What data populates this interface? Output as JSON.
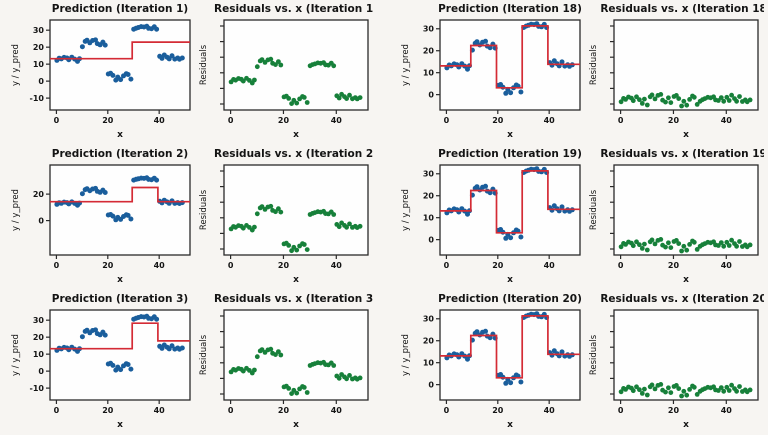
{
  "page": {
    "background": "#f7f5f2"
  },
  "chart_data": {
    "type": "scatter",
    "layout": {
      "grid": "3 rows x 4 columns, two figure groups (iterations 1-3 left, 18-20 right)",
      "legend": "none",
      "grid_lines": false
    },
    "colors": {
      "scatter_blue": "#1a5e9c",
      "line_red": "#d42b35",
      "residual_green": "#17803a",
      "axis": "#2a2a2a",
      "plot_bg": "#fefefe",
      "text": "#141414"
    },
    "dataset": {
      "x": [
        0.2,
        1.1,
        1.9,
        3.0,
        4.1,
        4.8,
        6.0,
        7.1,
        8.2,
        9.0,
        10.1,
        11.2,
        11.9,
        13.0,
        14.1,
        15.2,
        15.9,
        17.0,
        18.1,
        19.0,
        20.2,
        21.1,
        22.0,
        23.1,
        23.9,
        25.0,
        26.1,
        27.2,
        27.9,
        29.0,
        30.1,
        31.0,
        31.9,
        33.0,
        34.1,
        35.2,
        35.9,
        37.0,
        38.1,
        39.0,
        40.2,
        41.1,
        42.0,
        43.1,
        43.9,
        45.0,
        46.1,
        47.2,
        47.9,
        49.0
      ],
      "y": [
        12.2,
        13.5,
        13.1,
        14.0,
        13.6,
        12.6,
        14.1,
        13.0,
        11.6,
        13.2,
        20.3,
        23.4,
        24.1,
        22.6,
        23.9,
        24.3,
        22.1,
        21.4,
        23.0,
        21.2,
        4.2,
        4.6,
        3.4,
        0.6,
        2.4,
        0.9,
        3.1,
        4.4,
        3.9,
        1.2,
        30.6,
        31.2,
        31.6,
        32.1,
        31.9,
        32.3,
        31.1,
        30.9,
        32.0,
        30.6,
        14.6,
        13.4,
        15.4,
        14.1,
        13.1,
        14.9,
        13.0,
        13.6,
        12.9,
        13.6
      ]
    },
    "figures": [
      {
        "name": "left",
        "plots": [
          {
            "id": "prediction-1",
            "kind": "prediction",
            "title": "Prediction (Iteration 1)",
            "xlabel": "x",
            "ylabel": "y / y_pred",
            "xlim": [
              -2.5,
              52
            ],
            "ylim": [
              -17,
              36
            ],
            "xticks": [
              0,
              20,
              40
            ],
            "yticks": [
              30,
              20,
              10,
              0,
              -10
            ],
            "line_segments": [
              [
                -2.5,
                29.5,
                13.2
              ],
              [
                29.5,
                52,
                23.0
              ]
            ]
          },
          {
            "id": "residuals-1",
            "kind": "residuals",
            "title": "Residuals vs. x (Iteration 1)",
            "xlabel": "x",
            "ylabel": "Residuals",
            "xlim": [
              -2.5,
              52
            ],
            "ylim": [
              -16,
              32
            ],
            "xticks": [
              0,
              20,
              40
            ],
            "ytick_count": 6,
            "line_segments": [
              [
                -2.5,
                29.5,
                13.2
              ],
              [
                29.5,
                52,
                23.0
              ]
            ]
          },
          {
            "id": "prediction-2",
            "kind": "prediction",
            "title": "Prediction (Iteration 2)",
            "xlabel": "x",
            "ylabel": "y / y_pred",
            "xlim": [
              -2.5,
              52
            ],
            "ylim": [
              -26,
              42
            ],
            "xticks": [
              0,
              20,
              40
            ],
            "yticks": [
              20,
              0
            ],
            "line_segments": [
              [
                -2.5,
                29.5,
                14.3
              ],
              [
                29.5,
                39.5,
                25.0
              ],
              [
                39.5,
                52,
                14.3
              ]
            ]
          },
          {
            "id": "residuals-2",
            "kind": "residuals",
            "title": "Residuals vs. x (Iteration 2)",
            "xlabel": "x",
            "ylabel": "Residuals",
            "xlim": [
              -2.5,
              52
            ],
            "ylim": [
              -16,
              32
            ],
            "xticks": [
              0,
              20,
              40
            ],
            "ytick_count": 6,
            "line_segments": [
              [
                -2.5,
                29.5,
                14.3
              ],
              [
                29.5,
                39.5,
                25.0
              ],
              [
                39.5,
                52,
                14.3
              ]
            ]
          },
          {
            "id": "prediction-3",
            "kind": "prediction",
            "title": "Prediction (Iteration 3)",
            "xlabel": "x",
            "ylabel": "y / y_pred",
            "xlim": [
              -2.5,
              52
            ],
            "ylim": [
              -17,
              36
            ],
            "xticks": [
              0,
              20,
              40
            ],
            "yticks": [
              30,
              20,
              10,
              0,
              -10
            ],
            "line_segments": [
              [
                -2.5,
                29.5,
                13.2
              ],
              [
                29.5,
                39.5,
                28.2
              ],
              [
                39.5,
                52,
                17.8
              ]
            ]
          },
          {
            "id": "residuals-3",
            "kind": "residuals",
            "title": "Residuals vs. x (Iteration 3)",
            "xlabel": "x",
            "ylabel": "Residuals",
            "xlim": [
              -2.5,
              52
            ],
            "ylim": [
              -16,
              32
            ],
            "xticks": [
              0,
              20,
              40
            ],
            "ytick_count": 6,
            "line_segments": [
              [
                -2.5,
                29.5,
                13.2
              ],
              [
                29.5,
                39.5,
                28.2
              ],
              [
                39.5,
                52,
                17.8
              ]
            ]
          }
        ]
      },
      {
        "name": "right",
        "plots": [
          {
            "id": "prediction-18",
            "kind": "prediction",
            "title": "Prediction (Iteration 18)",
            "xlabel": "x",
            "ylabel": "y / y_pred",
            "xlim": [
              -2.5,
              52
            ],
            "ylim": [
              -7,
              34
            ],
            "xticks": [
              0,
              20,
              40
            ],
            "yticks": [
              30,
              20,
              10,
              0
            ],
            "line_segments": [
              [
                -2.5,
                9.5,
                13.1
              ],
              [
                9.5,
                19.5,
                22.4
              ],
              [
                19.5,
                29.5,
                3.1
              ],
              [
                29.5,
                39.5,
                31.3
              ],
              [
                39.5,
                52,
                13.8
              ]
            ]
          },
          {
            "id": "residuals-18",
            "kind": "residuals",
            "title": "Residuals vs. x (Iteration 18)",
            "xlabel": "x",
            "ylabel": "Residuals",
            "xlim": [
              -2.5,
              52
            ],
            "ylim": [
              -4,
              30
            ],
            "xticks": [
              0,
              20,
              40
            ],
            "ytick_count": 6,
            "line_segments": [
              [
                -2.5,
                9.5,
                13.1
              ],
              [
                9.5,
                19.5,
                22.4
              ],
              [
                19.5,
                29.5,
                3.1
              ],
              [
                29.5,
                39.5,
                31.3
              ],
              [
                39.5,
                52,
                13.8
              ]
            ]
          },
          {
            "id": "prediction-19",
            "kind": "prediction",
            "title": "Prediction (Iteration 19)",
            "xlabel": "x",
            "ylabel": "y / y_pred",
            "xlim": [
              -2.5,
              52
            ],
            "ylim": [
              -7,
              34
            ],
            "xticks": [
              0,
              20,
              40
            ],
            "yticks": [
              30,
              20,
              10,
              0
            ],
            "line_segments": [
              [
                -2.5,
                9.5,
                13.1
              ],
              [
                9.5,
                19.5,
                22.4
              ],
              [
                19.5,
                29.5,
                3.1
              ],
              [
                29.5,
                39.5,
                31.3
              ],
              [
                39.5,
                52,
                13.8
              ]
            ]
          },
          {
            "id": "residuals-19",
            "kind": "residuals",
            "title": "Residuals vs. x (Iteration 19)",
            "xlabel": "x",
            "ylabel": "Residuals",
            "xlim": [
              -2.5,
              52
            ],
            "ylim": [
              -4,
              30
            ],
            "xticks": [
              0,
              20,
              40
            ],
            "ytick_count": 6,
            "line_segments": [
              [
                -2.5,
                9.5,
                13.1
              ],
              [
                9.5,
                19.5,
                22.4
              ],
              [
                19.5,
                29.5,
                3.1
              ],
              [
                29.5,
                39.5,
                31.3
              ],
              [
                39.5,
                52,
                13.8
              ]
            ]
          },
          {
            "id": "prediction-20",
            "kind": "prediction",
            "title": "Prediction (Iteration 20)",
            "xlabel": "x",
            "ylabel": "y / y_pred",
            "xlim": [
              -2.5,
              52
            ],
            "ylim": [
              -7,
              34
            ],
            "xticks": [
              0,
              20,
              40
            ],
            "yticks": [
              30,
              20,
              10,
              0
            ],
            "line_segments": [
              [
                -2.5,
                9.5,
                13.1
              ],
              [
                9.5,
                19.5,
                22.4
              ],
              [
                19.5,
                29.5,
                3.1
              ],
              [
                29.5,
                39.5,
                31.3
              ],
              [
                39.5,
                52,
                13.8
              ]
            ]
          },
          {
            "id": "residuals-20",
            "kind": "residuals",
            "title": "Residuals vs. x (Iteration 20)",
            "xlabel": "x",
            "ylabel": "Residuals",
            "xlim": [
              -2.5,
              52
            ],
            "ylim": [
              -4,
              30
            ],
            "xticks": [
              0,
              20,
              40
            ],
            "ytick_count": 6,
            "line_segments": [
              [
                -2.5,
                9.5,
                13.1
              ],
              [
                9.5,
                19.5,
                22.4
              ],
              [
                19.5,
                29.5,
                3.1
              ],
              [
                29.5,
                39.5,
                31.3
              ],
              [
                39.5,
                52,
                13.8
              ]
            ]
          }
        ]
      }
    ]
  }
}
